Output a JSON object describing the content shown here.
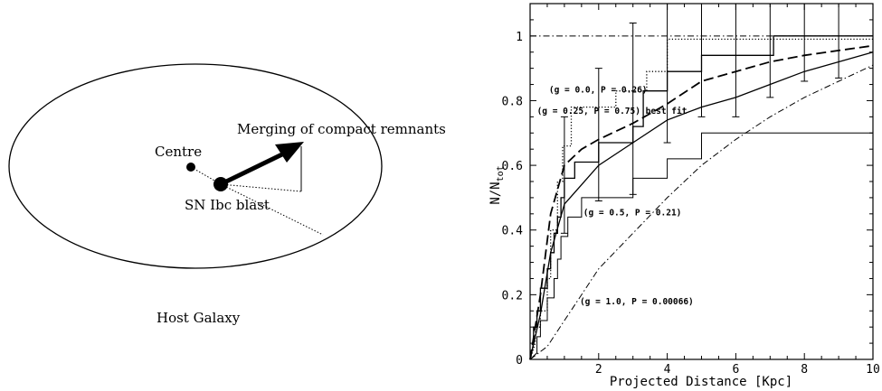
{
  "diagram": {
    "labels": {
      "merging": "Merging of compact remnants",
      "centre": "Centre",
      "sn": "SN Ibc blast",
      "host": "Host Galaxy"
    }
  },
  "chart_data": {
    "type": "line",
    "title": "",
    "xlabel": "Projected Distance [Kpc]",
    "ylabel": "N/N_tot",
    "xlim": [
      0,
      10
    ],
    "ylim": [
      0,
      1.1
    ],
    "xticks": [
      2,
      4,
      6,
      8,
      10
    ],
    "yticks": [
      0,
      0.2,
      0.4,
      0.6,
      0.8,
      1
    ],
    "reference_line": {
      "y": 1.0,
      "style": "dash-dot"
    },
    "annotations": [
      {
        "text": "(g = 0.0, P = 0.26)",
        "x": 0.55,
        "y": 0.825
      },
      {
        "text": "(g = 0.25, P = 0.75) best fit",
        "x": 0.2,
        "y": 0.76
      },
      {
        "text": "(g = 0.5, P = 0.21)",
        "x": 1.55,
        "y": 0.445
      },
      {
        "text": "(g = 1.0, P = 0.00066)",
        "x": 1.45,
        "y": 0.17
      }
    ],
    "series": [
      {
        "kind": "step",
        "style": "solid",
        "points": [
          [
            0,
            0
          ],
          [
            0.1,
            0.05
          ],
          [
            0.1,
            0.1
          ],
          [
            0.2,
            0.1
          ],
          [
            0.2,
            0.15
          ],
          [
            0.3,
            0.15
          ],
          [
            0.3,
            0.22
          ],
          [
            0.5,
            0.22
          ],
          [
            0.5,
            0.28
          ],
          [
            0.6,
            0.28
          ],
          [
            0.6,
            0.33
          ],
          [
            0.7,
            0.33
          ],
          [
            0.7,
            0.39
          ],
          [
            0.8,
            0.39
          ],
          [
            0.8,
            0.44
          ],
          [
            0.9,
            0.44
          ],
          [
            0.9,
            0.5
          ],
          [
            1.0,
            0.5
          ],
          [
            1.0,
            0.56
          ],
          [
            1.3,
            0.56
          ],
          [
            1.3,
            0.61
          ],
          [
            2.0,
            0.61
          ],
          [
            2.0,
            0.67
          ],
          [
            3.0,
            0.67
          ],
          [
            3.0,
            0.72
          ],
          [
            3.3,
            0.72
          ],
          [
            3.3,
            0.83
          ],
          [
            4.0,
            0.83
          ],
          [
            4.0,
            0.89
          ],
          [
            5.0,
            0.89
          ],
          [
            5.0,
            0.94
          ],
          [
            7.1,
            0.94
          ],
          [
            7.1,
            1.0
          ],
          [
            10,
            1.0
          ]
        ]
      },
      {
        "kind": "step",
        "style": "dotted",
        "points": [
          [
            0,
            0
          ],
          [
            0.15,
            0.05
          ],
          [
            0.15,
            0.1
          ],
          [
            0.3,
            0.1
          ],
          [
            0.3,
            0.15
          ],
          [
            0.5,
            0.15
          ],
          [
            0.5,
            0.25
          ],
          [
            0.6,
            0.25
          ],
          [
            0.6,
            0.4
          ],
          [
            0.8,
            0.4
          ],
          [
            0.8,
            0.55
          ],
          [
            0.95,
            0.55
          ],
          [
            0.95,
            0.66
          ],
          [
            1.2,
            0.66
          ],
          [
            1.2,
            0.78
          ],
          [
            2.5,
            0.78
          ],
          [
            2.5,
            0.83
          ],
          [
            3.4,
            0.83
          ],
          [
            3.4,
            0.89
          ],
          [
            4.0,
            0.89
          ],
          [
            4.0,
            0.99
          ],
          [
            10,
            0.99
          ]
        ]
      },
      {
        "kind": "step",
        "style": "thin-solid",
        "points": [
          [
            0,
            0
          ],
          [
            0.2,
            0.02
          ],
          [
            0.2,
            0.07
          ],
          [
            0.3,
            0.07
          ],
          [
            0.3,
            0.12
          ],
          [
            0.5,
            0.12
          ],
          [
            0.5,
            0.19
          ],
          [
            0.7,
            0.19
          ],
          [
            0.7,
            0.25
          ],
          [
            0.8,
            0.25
          ],
          [
            0.8,
            0.31
          ],
          [
            0.9,
            0.31
          ],
          [
            0.9,
            0.38
          ],
          [
            1.1,
            0.38
          ],
          [
            1.1,
            0.44
          ],
          [
            1.5,
            0.44
          ],
          [
            1.5,
            0.5
          ],
          [
            3.0,
            0.5
          ],
          [
            3.0,
            0.56
          ],
          [
            4.0,
            0.56
          ],
          [
            4.0,
            0.62
          ],
          [
            5.0,
            0.62
          ],
          [
            5.0,
            0.7
          ],
          [
            10,
            0.7
          ]
        ]
      },
      {
        "kind": "curve",
        "style": "long-dash",
        "label": "(g = 0.25, P = 0.75) best fit",
        "points": [
          [
            0,
            0
          ],
          [
            0.3,
            0.2
          ],
          [
            0.6,
            0.45
          ],
          [
            1.0,
            0.6
          ],
          [
            1.5,
            0.65
          ],
          [
            2,
            0.68
          ],
          [
            3,
            0.73
          ],
          [
            4,
            0.79
          ],
          [
            5,
            0.86
          ],
          [
            6,
            0.89
          ],
          [
            7,
            0.92
          ],
          [
            8,
            0.94
          ],
          [
            9,
            0.955
          ],
          [
            10,
            0.97
          ]
        ]
      },
      {
        "kind": "curve",
        "style": "solid",
        "label": "(g = 0.5, P = 0.21)",
        "points": [
          [
            0,
            0
          ],
          [
            0.3,
            0.14
          ],
          [
            0.6,
            0.33
          ],
          [
            1.0,
            0.48
          ],
          [
            1.5,
            0.54
          ],
          [
            2,
            0.6
          ],
          [
            3,
            0.67
          ],
          [
            4,
            0.74
          ],
          [
            5,
            0.78
          ],
          [
            6,
            0.81
          ],
          [
            7,
            0.85
          ],
          [
            8,
            0.89
          ],
          [
            9,
            0.92
          ],
          [
            10,
            0.95
          ]
        ]
      },
      {
        "kind": "curve",
        "style": "dash-dot",
        "label": "(g = 1.0, P = 0.00066)",
        "points": [
          [
            0,
            0
          ],
          [
            0.5,
            0.04
          ],
          [
            1,
            0.12
          ],
          [
            1.5,
            0.2
          ],
          [
            2,
            0.28
          ],
          [
            3,
            0.39
          ],
          [
            4,
            0.5
          ],
          [
            5,
            0.6
          ],
          [
            6,
            0.68
          ],
          [
            7,
            0.75
          ],
          [
            8,
            0.81
          ],
          [
            9,
            0.86
          ],
          [
            10,
            0.91
          ]
        ]
      }
    ],
    "errorbars": [
      {
        "x": 1.0,
        "y": 0.56,
        "low": 0.39,
        "high": 0.75
      },
      {
        "x": 2.0,
        "y": 0.69,
        "low": 0.49,
        "high": 0.9
      },
      {
        "x": 3.0,
        "y": 0.76,
        "low": 0.51,
        "high": 1.04
      },
      {
        "x": 4.0,
        "y": 0.89,
        "low": 0.67,
        "high": 1.12
      },
      {
        "x": 5.0,
        "y": 0.91,
        "low": 0.75,
        "high": 1.12
      },
      {
        "x": 6.0,
        "y": 0.88,
        "low": 0.75,
        "high": 1.12
      },
      {
        "x": 7.0,
        "y": 0.91,
        "low": 0.81,
        "high": 1.12
      },
      {
        "x": 8.0,
        "y": 0.92,
        "low": 0.86,
        "high": 1.12
      },
      {
        "x": 9.0,
        "y": 0.93,
        "low": 0.87,
        "high": 1.12
      }
    ]
  }
}
